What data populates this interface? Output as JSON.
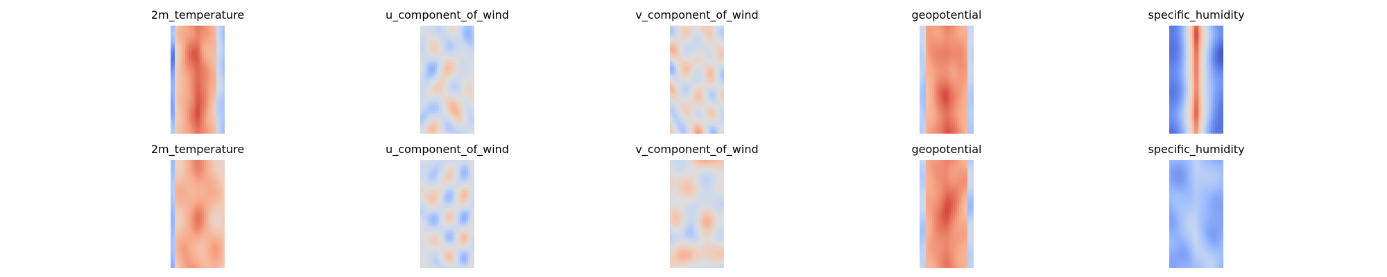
{
  "figure": {
    "rows": [
      {
        "panels": [
          {
            "title": "2m_temperature",
            "variant": "temp_a"
          },
          {
            "title": "u_component_of_wind",
            "variant": "uwind"
          },
          {
            "title": "v_component_of_wind",
            "variant": "vwind"
          },
          {
            "title": "geopotential",
            "variant": "geo"
          },
          {
            "title": "specific_humidity",
            "variant": "humid_a"
          }
        ]
      },
      {
        "panels": [
          {
            "title": "2m_temperature",
            "variant": "temp_b"
          },
          {
            "title": "u_component_of_wind",
            "variant": "uwind"
          },
          {
            "title": "v_component_of_wind",
            "variant": "vwind"
          },
          {
            "title": "geopotential",
            "variant": "geo"
          },
          {
            "title": "specific_humidity",
            "variant": "humid_b"
          }
        ]
      }
    ]
  },
  "colormap": {
    "name": "coolwarm",
    "stops": [
      "#3b4cc0",
      "#6788ee",
      "#9abbff",
      "#c9d7f0",
      "#dddddd",
      "#f2cbb7",
      "#f7a889",
      "#e26952",
      "#b40426"
    ]
  }
}
